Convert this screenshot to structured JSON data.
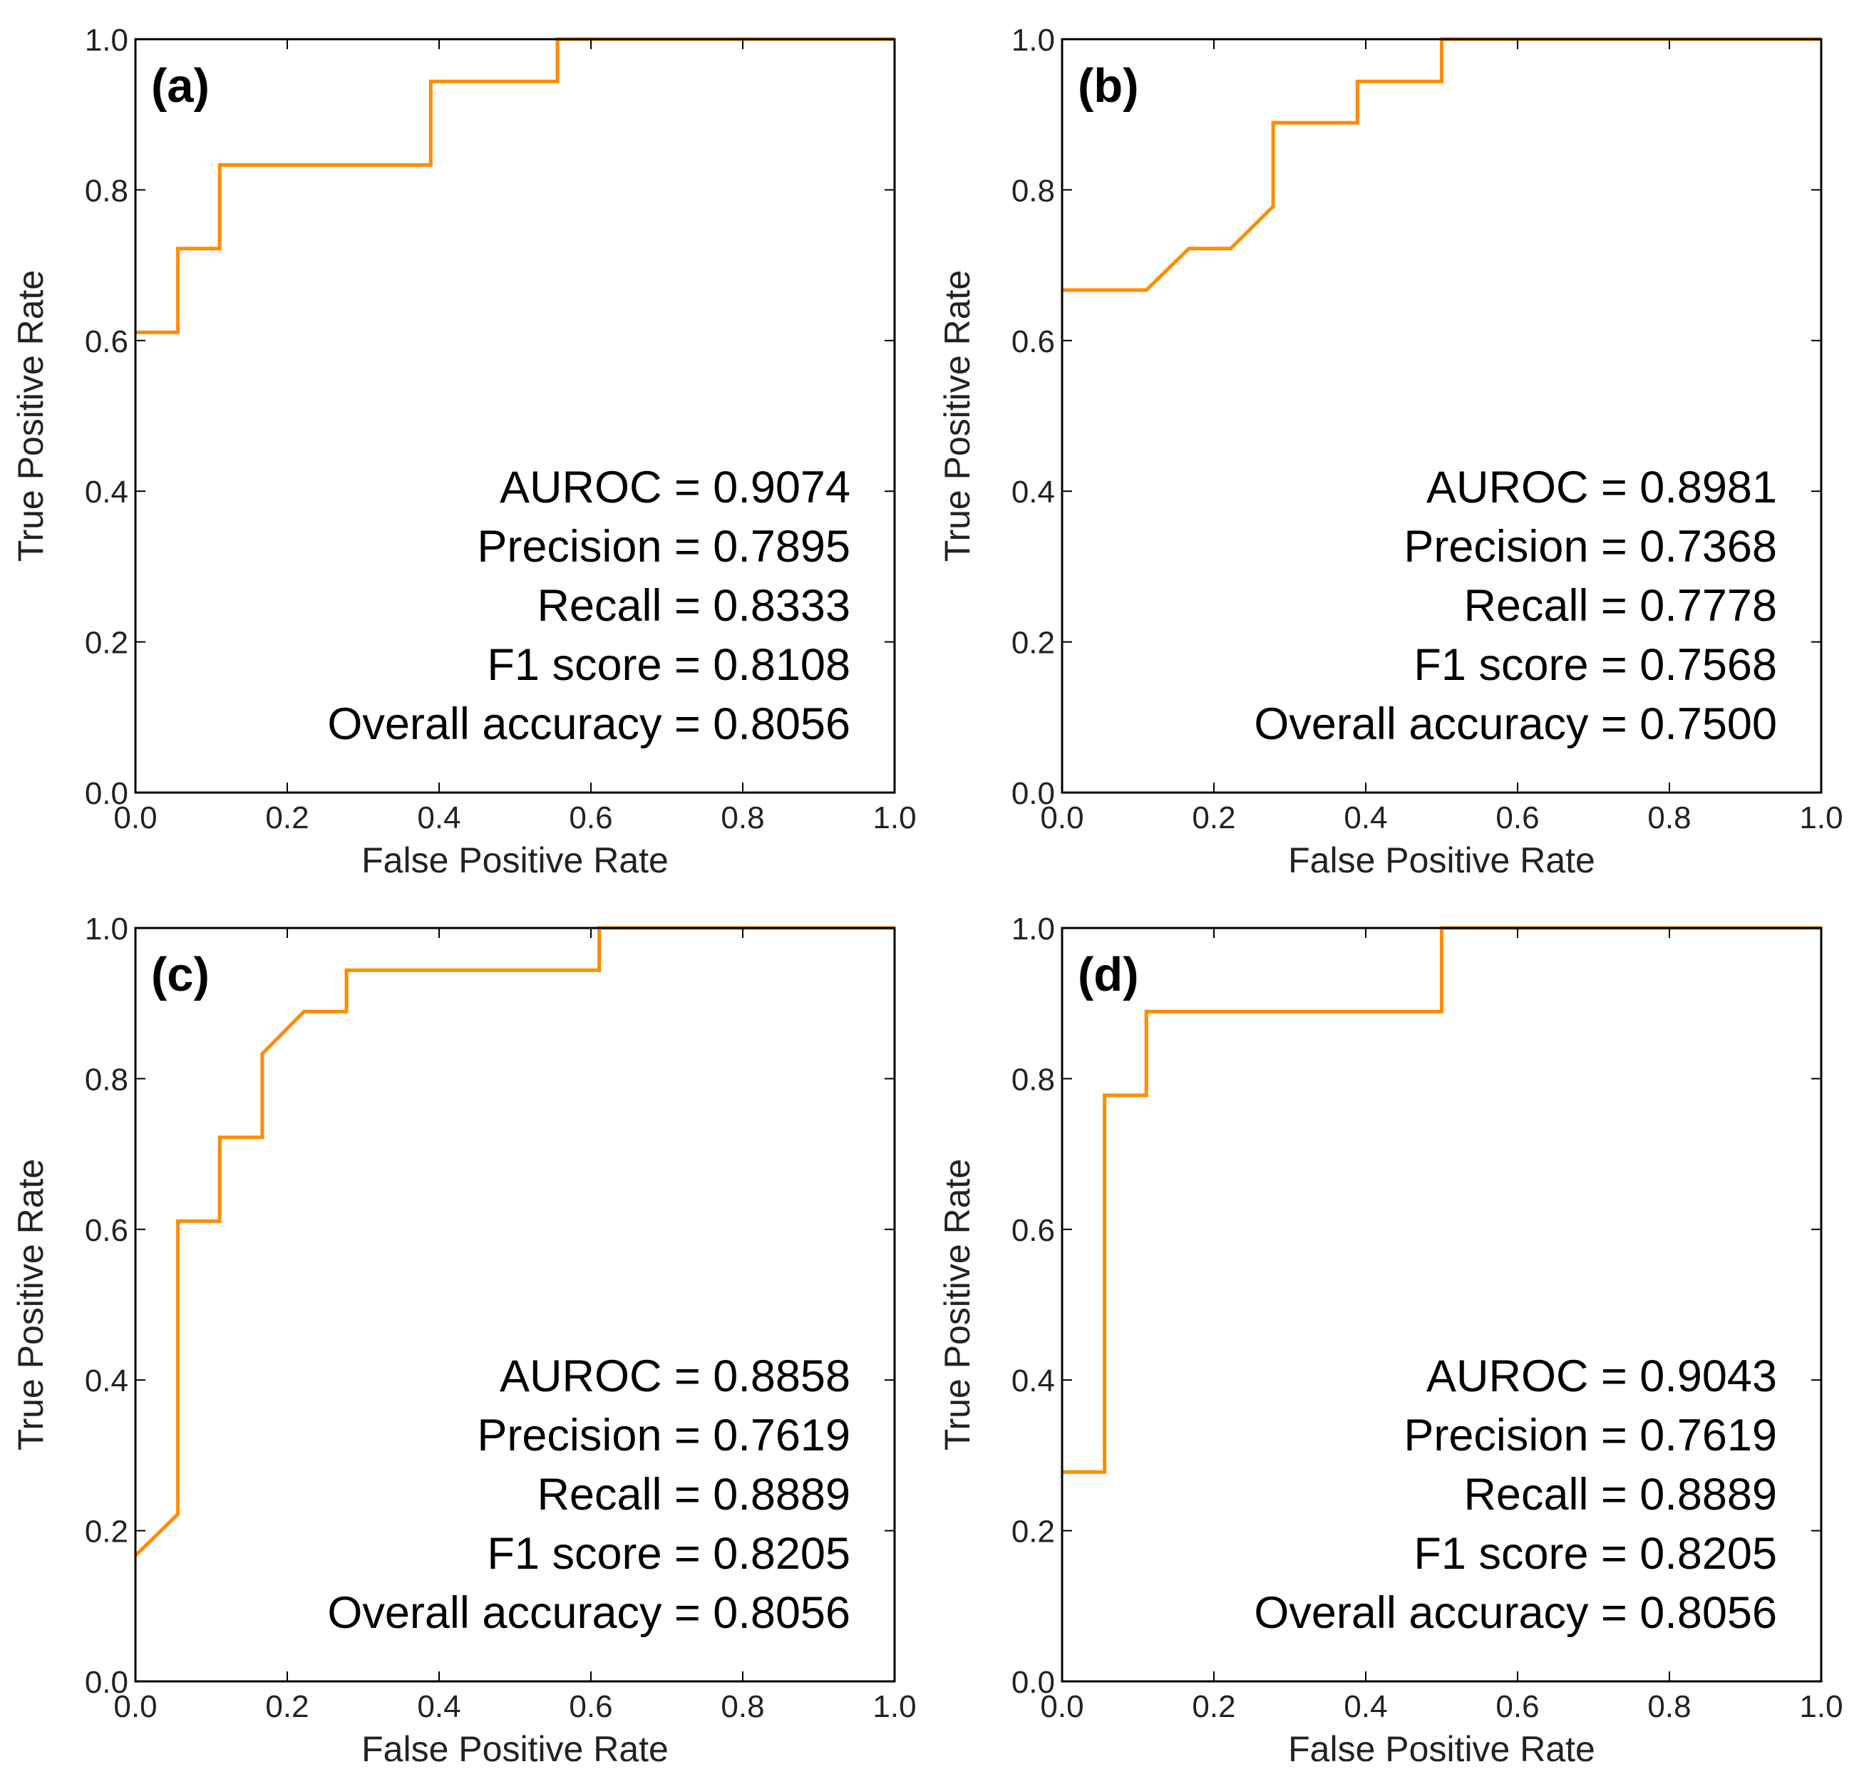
{
  "colors": {
    "curve": "#ff8c00",
    "axes": "#000000",
    "text": "#222222"
  },
  "chart_data": [
    {
      "type": "line",
      "panel_label": "(a)",
      "xlabel": "False Positive Rate",
      "ylabel": "True Positive Rate",
      "xlim": [
        0,
        1
      ],
      "ylim": [
        0,
        1
      ],
      "xticks": [
        "0.0",
        "0.2",
        "0.4",
        "0.6",
        "0.8",
        "1.0"
      ],
      "yticks": [
        "0.0",
        "0.2",
        "0.4",
        "0.6",
        "0.8",
        "1.0"
      ],
      "grid": false,
      "x": [
        0.0,
        0.056,
        0.056,
        0.111,
        0.111,
        0.389,
        0.389,
        0.556,
        0.556,
        1.0
      ],
      "y": [
        0.611,
        0.611,
        0.722,
        0.722,
        0.833,
        0.833,
        0.944,
        0.944,
        1.0,
        1.0
      ],
      "annotations": [
        "AUROC = 0.9074",
        "Precision = 0.7895",
        "Recall = 0.8333",
        "F1 score = 0.8108",
        "Overall accuracy = 0.8056"
      ]
    },
    {
      "type": "line",
      "panel_label": "(b)",
      "xlabel": "False Positive Rate",
      "ylabel": "True Positive Rate",
      "xlim": [
        0,
        1
      ],
      "ylim": [
        0,
        1
      ],
      "xticks": [
        "0.0",
        "0.2",
        "0.4",
        "0.6",
        "0.8",
        "1.0"
      ],
      "yticks": [
        "0.0",
        "0.2",
        "0.4",
        "0.6",
        "0.8",
        "1.0"
      ],
      "grid": false,
      "x": [
        0.0,
        0.111,
        0.167,
        0.222,
        0.278,
        0.278,
        0.389,
        0.389,
        0.5,
        0.5,
        1.0
      ],
      "y": [
        0.667,
        0.667,
        0.722,
        0.722,
        0.778,
        0.889,
        0.889,
        0.944,
        0.944,
        1.0,
        1.0
      ],
      "annotations": [
        "AUROC = 0.8981",
        "Precision = 0.7368",
        "Recall = 0.7778",
        "F1 score = 0.7568",
        "Overall accuracy = 0.7500"
      ]
    },
    {
      "type": "line",
      "panel_label": "(c)",
      "xlabel": "False Positive Rate",
      "ylabel": "True Positive Rate",
      "xlim": [
        0,
        1
      ],
      "ylim": [
        0,
        1
      ],
      "xticks": [
        "0.0",
        "0.2",
        "0.4",
        "0.6",
        "0.8",
        "1.0"
      ],
      "yticks": [
        "0.0",
        "0.2",
        "0.4",
        "0.6",
        "0.8",
        "1.0"
      ],
      "grid": false,
      "x": [
        0.0,
        0.056,
        0.056,
        0.111,
        0.111,
        0.167,
        0.167,
        0.222,
        0.278,
        0.278,
        0.611,
        0.611,
        1.0
      ],
      "y": [
        0.167,
        0.222,
        0.611,
        0.611,
        0.722,
        0.722,
        0.833,
        0.889,
        0.889,
        0.944,
        0.944,
        1.0,
        1.0
      ],
      "annotations": [
        "AUROC = 0.8858",
        "Precision = 0.7619",
        "Recall = 0.8889",
        "F1 score = 0.8205",
        "Overall accuracy = 0.8056"
      ]
    },
    {
      "type": "line",
      "panel_label": "(d)",
      "xlabel": "False Positive Rate",
      "ylabel": "True Positive Rate",
      "xlim": [
        0,
        1
      ],
      "ylim": [
        0,
        1
      ],
      "xticks": [
        "0.0",
        "0.2",
        "0.4",
        "0.6",
        "0.8",
        "1.0"
      ],
      "yticks": [
        "0.0",
        "0.2",
        "0.4",
        "0.6",
        "0.8",
        "1.0"
      ],
      "grid": false,
      "x": [
        0.0,
        0.056,
        0.056,
        0.111,
        0.111,
        0.5,
        0.5,
        1.0
      ],
      "y": [
        0.278,
        0.278,
        0.778,
        0.778,
        0.889,
        0.889,
        1.0,
        1.0
      ],
      "annotations": [
        "AUROC = 0.9043",
        "Precision = 0.7619",
        "Recall = 0.8889",
        "F1 score = 0.8205",
        "Overall accuracy = 0.8056"
      ]
    }
  ]
}
